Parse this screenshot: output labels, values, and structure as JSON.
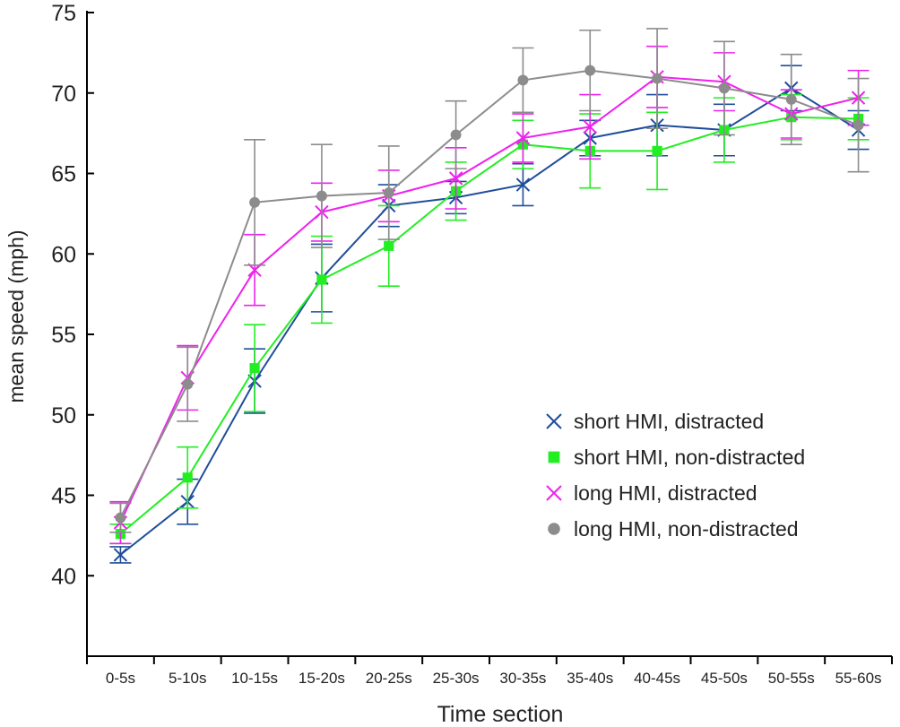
{
  "chart_data": {
    "type": "line",
    "title": "",
    "xlabel": "Time section",
    "ylabel": "mean speed (mph)",
    "ylim": [
      35,
      75
    ],
    "yticks": [
      40,
      45,
      50,
      55,
      60,
      65,
      70,
      75
    ],
    "grid": false,
    "legend_position": "lower-right",
    "categories": [
      "0-5s",
      "5-10s",
      "10-15s",
      "15-20s",
      "20-25s",
      "25-30s",
      "30-35s",
      "35-40s",
      "40-45s",
      "45-50s",
      "50-55s",
      "55-60s"
    ],
    "series": [
      {
        "name": "short HMI, distracted",
        "color": "#1f4e9a",
        "marker": "x-icon",
        "values": [
          41.3,
          44.6,
          52.1,
          58.5,
          63.0,
          63.5,
          64.3,
          67.2,
          68.0,
          67.7,
          70.3,
          67.7
        ],
        "errors": [
          0.5,
          1.4,
          2.0,
          2.1,
          1.3,
          1.0,
          1.3,
          1.1,
          1.9,
          1.6,
          1.4,
          1.2
        ]
      },
      {
        "name": "short HMI, non-distracted",
        "color": "#22ee22",
        "marker": "square-icon",
        "values": [
          42.6,
          46.1,
          52.9,
          58.4,
          60.5,
          63.9,
          66.8,
          66.4,
          66.4,
          67.7,
          68.5,
          68.4
        ],
        "errors": [
          0.6,
          1.9,
          2.7,
          2.7,
          2.5,
          1.8,
          1.5,
          2.3,
          2.4,
          2.0,
          1.4,
          1.3
        ]
      },
      {
        "name": "long HMI, distracted",
        "color": "#ee22ee",
        "marker": "x-icon",
        "values": [
          43.3,
          52.3,
          59.0,
          62.6,
          63.6,
          64.7,
          67.2,
          67.9,
          71.0,
          70.7,
          68.7,
          69.7
        ],
        "errors": [
          1.3,
          2.0,
          2.2,
          1.8,
          1.6,
          1.9,
          1.5,
          2.0,
          1.9,
          1.8,
          1.5,
          1.7
        ]
      },
      {
        "name": "long HMI, non-distracted",
        "color": "#8c8c8c",
        "marker": "circle-icon",
        "values": [
          43.6,
          51.9,
          63.2,
          63.6,
          63.8,
          67.4,
          70.8,
          71.4,
          70.9,
          70.3,
          69.6,
          68.0
        ],
        "errors": [
          0.9,
          2.3,
          3.9,
          3.2,
          2.9,
          2.1,
          2.0,
          2.5,
          3.1,
          2.9,
          2.8,
          2.9
        ]
      }
    ]
  }
}
